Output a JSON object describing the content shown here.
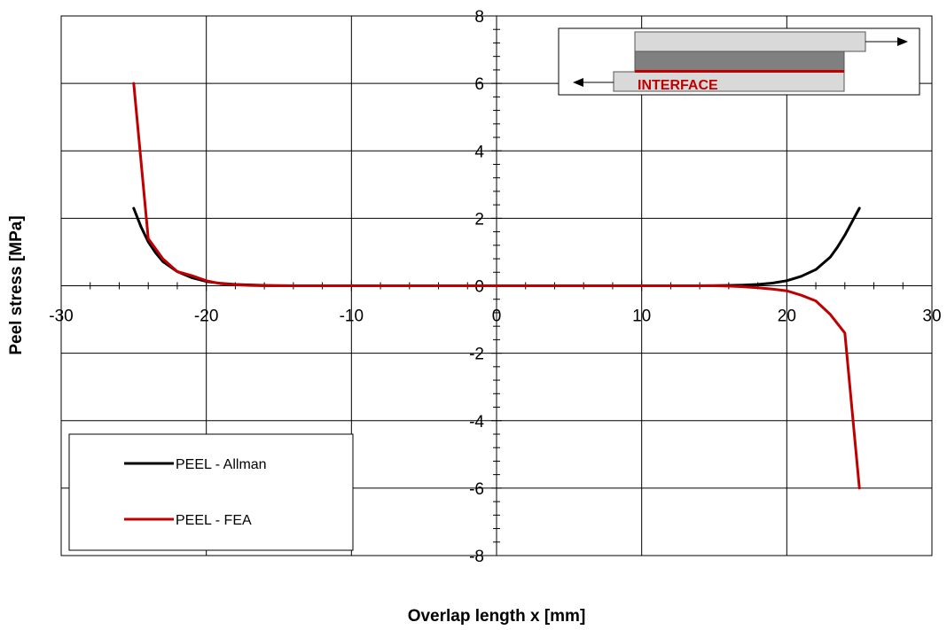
{
  "chart_data": {
    "type": "line",
    "title": "",
    "xlabel": "Overlap length x [mm]",
    "ylabel": "Peel stress [MPa]",
    "xlim": [
      -30,
      30
    ],
    "ylim": [
      -8,
      8
    ],
    "x_ticks": [
      -30,
      -20,
      -10,
      0,
      10,
      20,
      30
    ],
    "y_ticks": [
      -8,
      -6,
      -4,
      -2,
      0,
      2,
      4,
      6,
      8
    ],
    "x_tick_labels": [
      "-30",
      "-20",
      "-10",
      "0",
      "10",
      "20",
      "30"
    ],
    "y_tick_labels": [
      "-8",
      "-6",
      "-4",
      "-2",
      "0",
      "2",
      "4",
      "6",
      "8"
    ],
    "grid": true,
    "legend_position": "bottom-left",
    "series": [
      {
        "name": "PEEL - Allman",
        "color": "#000000",
        "x": [
          -25,
          -24.5,
          -24,
          -23.5,
          -23,
          -22,
          -21,
          -20,
          -19,
          -18,
          -16,
          -14,
          -10,
          0,
          10,
          14,
          16,
          17,
          18,
          19,
          20,
          21,
          22,
          23,
          23.5,
          24,
          24.5,
          25
        ],
        "y": [
          2.3,
          1.75,
          1.3,
          0.98,
          0.72,
          0.42,
          0.24,
          0.13,
          0.07,
          0.04,
          0.01,
          0.0,
          0.0,
          0.0,
          0.0,
          0.0,
          0.01,
          0.02,
          0.04,
          0.08,
          0.15,
          0.28,
          0.48,
          0.85,
          1.15,
          1.5,
          1.9,
          2.3
        ]
      },
      {
        "name": "PEEL - FEA",
        "color": "#c00000",
        "x": [
          -25,
          -24,
          -23,
          -22,
          -21,
          -20,
          -19,
          -18,
          -17,
          -16,
          -15,
          -10,
          0,
          10,
          15,
          16,
          17,
          18,
          19,
          20,
          21,
          22,
          23,
          24,
          25
        ],
        "y": [
          6.0,
          1.4,
          0.8,
          0.42,
          0.3,
          0.15,
          0.06,
          0.03,
          0.01,
          0.0,
          0.0,
          0.0,
          0.0,
          0.0,
          0.0,
          -0.01,
          -0.03,
          -0.06,
          -0.1,
          -0.15,
          -0.28,
          -0.45,
          -0.85,
          -1.4,
          -6.0
        ]
      }
    ],
    "inset": {
      "label": "INTERFACE",
      "label_color": "#c00000"
    }
  }
}
